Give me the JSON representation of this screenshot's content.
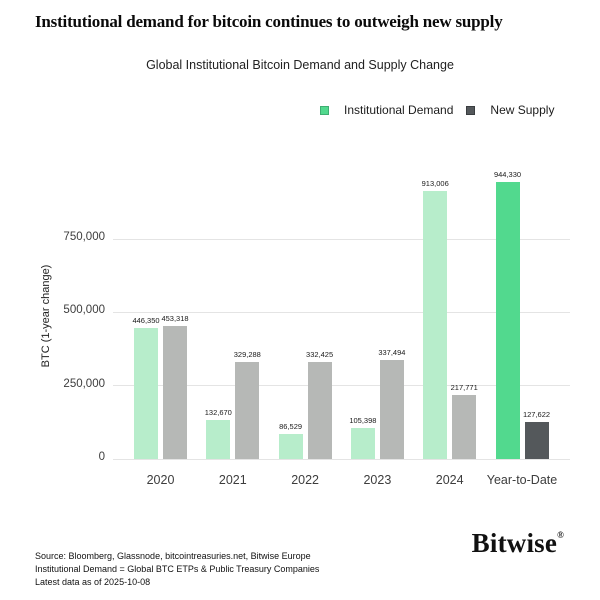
{
  "header": {
    "title": "Institutional demand for bitcoin continues to outweigh new supply",
    "subtitle": "Global Institutional Bitcoin Demand and Supply Change"
  },
  "legend": {
    "items": [
      {
        "label": "Institutional Demand",
        "color": "#52d98e",
        "border": "#3fae72"
      },
      {
        "label": "New Supply",
        "color": "#54585b",
        "border": "#3a3d40"
      }
    ]
  },
  "chart_data": {
    "type": "bar",
    "title": "Global Institutional Bitcoin Demand and Supply Change",
    "categories": [
      "2020",
      "2021",
      "2022",
      "2023",
      "2024",
      "Year-to-Date"
    ],
    "series": [
      {
        "name": "Institutional Demand",
        "values": [
          446350,
          132670,
          86529,
          105398,
          913006,
          944330
        ],
        "labels": [
          "446,350",
          "132,670",
          "86,529",
          "105,398",
          "913,006",
          "944,330"
        ],
        "bar_colors": [
          "#b7edcb",
          "#b7edcb",
          "#b7edcb",
          "#b7edcb",
          "#b7edcb",
          "#52d98e"
        ]
      },
      {
        "name": "New Supply",
        "values": [
          453318,
          329288,
          332425,
          337494,
          217771,
          127622
        ],
        "labels": [
          "453,318",
          "329,288",
          "332,425",
          "337,494",
          "217,771",
          "127,622"
        ],
        "bar_colors": [
          "#b6b8b6",
          "#b6b8b6",
          "#b6b8b6",
          "#b6b8b6",
          "#b6b8b6",
          "#54585b"
        ]
      }
    ],
    "ylabel": "BTC (1-year change)",
    "xlabel": "",
    "yticks": [
      0,
      250000,
      500000,
      750000
    ],
    "ytick_labels": [
      "0",
      "250,000",
      "500,000",
      "750,000"
    ],
    "ylim": [
      0,
      1000000
    ],
    "grid": true,
    "legend_position": "top-right",
    "highlight_category": "Year-to-Date"
  },
  "footer": {
    "source_lines": [
      "Source: Bloomberg, Glassnode, bitcointreasuries.net, Bitwise Europe",
      "Institutional Demand = Global BTC ETPs & Public Treasury Companies",
      "Latest data as of 2025-10-08"
    ],
    "logo_text": "Bitwise",
    "logo_mark": "®"
  }
}
